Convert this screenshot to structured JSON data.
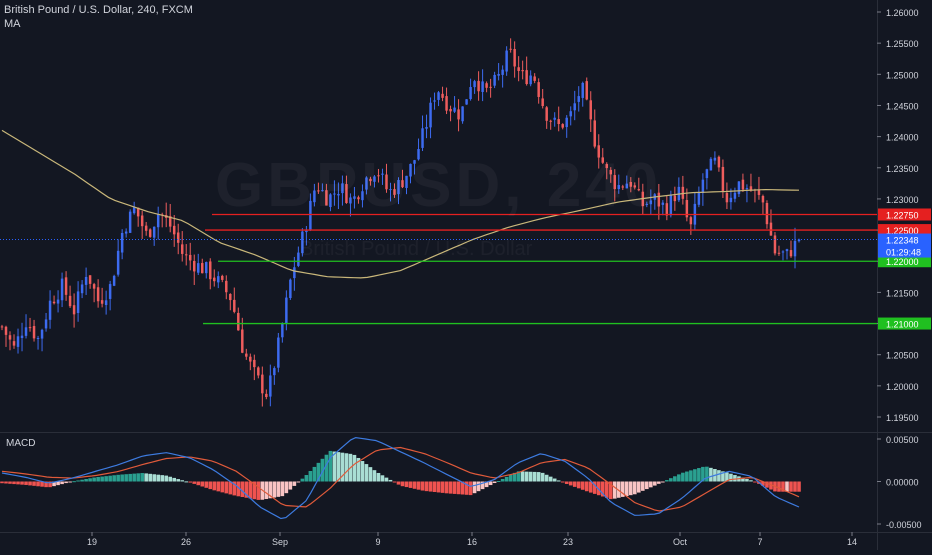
{
  "header": {
    "title": "British Pound / U.S. Dollar, 240, FXCM",
    "ma_label": "MA",
    "macd_label": "MACD"
  },
  "watermark": {
    "symbol": "GBPUSD, 240",
    "name": "British Pound / U.S. Dollar"
  },
  "colors": {
    "background": "#131722",
    "up": "#3d6bf0",
    "down": "#ef5d5d",
    "ma": "#c9b77a",
    "macd": "#3d7be0",
    "signal": "#e05a3a",
    "hist_pos": "#2aa090",
    "hist_pos_light": "#a9ded4",
    "hist_neg": "#ef5350",
    "hist_neg_light": "#f9c4c4",
    "resistance": "#e52020",
    "support": "#20c020",
    "last_price": "#2962ff",
    "axis_text": "#d1d4dc"
  },
  "chart_data": {
    "type": "candlestick",
    "price_axis": {
      "min": 1.1925,
      "max": 1.2625,
      "ticks": [
        "1.26000",
        "1.25500",
        "1.25000",
        "1.24500",
        "1.24000",
        "1.23500",
        "1.23000",
        "1.22500",
        "1.22000",
        "1.21500",
        "1.21000",
        "1.20500",
        "1.20000",
        "1.19500"
      ]
    },
    "macd_axis": {
      "min": -0.006,
      "max": 0.006,
      "ticks": [
        "0.00500",
        "0.00000",
        "-0.00500"
      ]
    },
    "time_axis": {
      "labels": [
        "19",
        "26",
        "Sep",
        "9",
        "16",
        "23",
        "Oct",
        "7",
        "14"
      ]
    },
    "close_path": [
      1.2095,
      1.206,
      1.2105,
      1.2075,
      1.2135,
      1.216,
      1.212,
      1.2185,
      1.2135,
      1.216,
      1.225,
      1.2285,
      1.224,
      1.228,
      1.2255,
      1.221,
      1.2195,
      1.2185,
      1.2165,
      1.214,
      1.2055,
      1.2015,
      1.1985,
      1.2075,
      1.218,
      1.2245,
      1.2325,
      1.23,
      1.232,
      1.2295,
      1.233,
      1.235,
      1.231,
      1.2325,
      1.2355,
      1.241,
      1.248,
      1.245,
      1.2435,
      1.25,
      1.247,
      1.249,
      1.2535,
      1.2495,
      1.25,
      1.244,
      1.2415,
      1.243,
      1.248,
      1.24,
      1.2345,
      1.232,
      1.233,
      1.229,
      1.23,
      1.2285,
      1.2315,
      1.225,
      1.233,
      1.236,
      1.23,
      1.2325,
      1.2315,
      1.2295,
      1.2215,
      1.221,
      1.2234
    ],
    "ma_path": [
      1.241,
      1.2375,
      1.234,
      1.23,
      1.228,
      1.2265,
      1.223,
      1.221,
      1.2185,
      1.2175,
      1.2173,
      1.2185,
      1.221,
      1.2235,
      1.2255,
      1.227,
      1.2282,
      1.2295,
      1.2303,
      1.231,
      1.2312,
      1.2315,
      1.2314
    ],
    "macd_line": [
      0.001,
      0.0005,
      -0.0002,
      0.0004,
      0.0012,
      0.002,
      0.003,
      0.0034,
      0.0028,
      0.0014,
      -0.0005,
      -0.003,
      -0.0045,
      -0.0022,
      0.0028,
      0.0052,
      0.0048,
      0.0035,
      0.0022,
      0.0008,
      -0.0006,
      0.0002,
      0.0022,
      0.0033,
      0.0024,
      0.0004,
      -0.0025,
      -0.004,
      -0.0038,
      -0.002,
      0.0004,
      0.0012,
      0.0006,
      -0.0018,
      -0.003
    ],
    "signal_line": [
      0.0012,
      0.0009,
      0.0005,
      0.0004,
      0.0007,
      0.0012,
      0.002,
      0.0027,
      0.0029,
      0.0024,
      0.0012,
      -0.0008,
      -0.0028,
      -0.003,
      -0.0008,
      0.002,
      0.0037,
      0.004,
      0.0033,
      0.0022,
      0.001,
      0.0004,
      0.001,
      0.0022,
      0.0026,
      0.0016,
      -0.0004,
      -0.0025,
      -0.0035,
      -0.003,
      -0.0014,
      0.0002,
      0.0005,
      -0.0006,
      -0.0018
    ],
    "levels": [
      {
        "name": "resistance-1",
        "price": 1.2275,
        "label": "1.22750",
        "kind": "resistance"
      },
      {
        "name": "resistance-2",
        "price": 1.225,
        "label": "1.22500",
        "kind": "resistance"
      },
      {
        "name": "support-1",
        "price": 1.22,
        "label": "1.22000",
        "kind": "support"
      },
      {
        "name": "support-2",
        "price": 1.21,
        "label": "1.21000",
        "kind": "support"
      }
    ],
    "last_price": {
      "price": 1.22348,
      "label": "1.22348",
      "countdown": "01:29:48"
    }
  }
}
